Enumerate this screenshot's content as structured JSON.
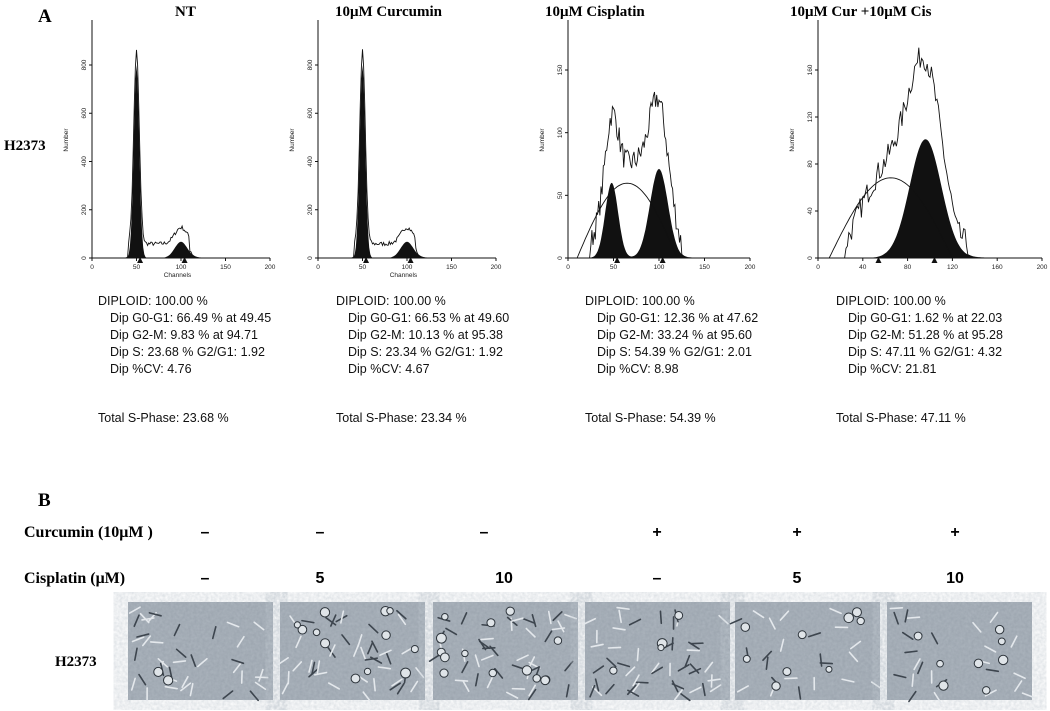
{
  "panel_a": {
    "label": "A",
    "row_label": "H2373",
    "y_label": "Number",
    "x_label": "Channels",
    "panels": [
      {
        "title": "NT",
        "yticks": [
          "0",
          "200",
          "400",
          "600",
          "800"
        ],
        "xticks": [
          "0",
          "50",
          "100",
          "150",
          "200"
        ],
        "stats": [
          "DIPLOID: 100.00 %",
          "Dip G0-G1: 66.49 % at 49.45",
          "Dip G2-M: 9.83 % at 94.71",
          "Dip S: 23.68 %  G2/G1: 1.92",
          "Dip %CV: 4.76"
        ],
        "total": "Total S-Phase: 23.68 %"
      },
      {
        "title": "10μM Curcumin",
        "yticks": [
          "0",
          "200",
          "400",
          "600",
          "800"
        ],
        "xticks": [
          "0",
          "50",
          "100",
          "150",
          "200"
        ],
        "stats": [
          "DIPLOID: 100.00 %",
          "Dip G0-G1: 66.53 % at 49.60",
          "Dip G2-M: 10.13 % at 95.38",
          "Dip S: 23.34 %  G2/G1: 1.92",
          "Dip %CV: 4.67"
        ],
        "total": "Total S-Phase: 23.34 %"
      },
      {
        "title": "10μM Cisplatin",
        "yticks": [
          "0",
          "50",
          "100",
          "150"
        ],
        "xticks": [
          "0",
          "50",
          "100",
          "150",
          "200"
        ],
        "stats": [
          "DIPLOID: 100.00 %",
          "Dip G0-G1: 12.36 % at 47.62",
          "Dip G2-M: 33.24 % at 95.60",
          "Dip S: 54.39 %  G2/G1: 2.01",
          "Dip %CV: 8.98"
        ],
        "total": "Total S-Phase: 54.39 %"
      },
      {
        "title": "10μM Cur +10μM Cis",
        "yticks": [
          "0",
          "40",
          "80",
          "120",
          "160"
        ],
        "xticks": [
          "0",
          "40",
          "80",
          "120",
          "160",
          "200"
        ],
        "stats": [
          "DIPLOID: 100.00 %",
          "Dip G0-G1: 1.62 % at 22.03",
          "Dip G2-M: 51.28 % at 95.28",
          "Dip S: 47.11 %  G2/G1: 4.32",
          "Dip %CV: 21.81"
        ],
        "total": "Total S-Phase: 47.11 %"
      }
    ]
  },
  "panel_b": {
    "label": "B",
    "rows": [
      {
        "label": "Curcumin (10μM )",
        "values": [
          "–",
          "–",
          "–",
          "+",
          "+",
          "+"
        ]
      },
      {
        "label": "Cisplatin (μM)",
        "values": [
          "–",
          "5",
          "10",
          "–",
          "5",
          "10"
        ]
      }
    ],
    "image_row_label": "H2373"
  }
}
